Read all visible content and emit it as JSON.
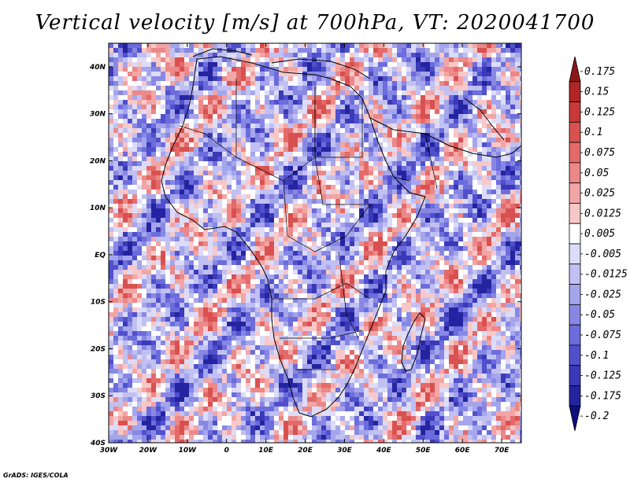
{
  "title": "Vertical velocity [m/s] at 700hPa, VT: 2020041700",
  "credit": "GrADS: IGES/COLA",
  "chart_data": {
    "type": "heatmap",
    "title": "Vertical velocity [m/s] at 700hPa, VT: 2020041700",
    "variable": "Vertical velocity",
    "units": "m/s",
    "level": "700hPa",
    "valid_time": "2020041700",
    "region": "Africa",
    "lon_range": [
      -30,
      75
    ],
    "lat_range": [
      -40,
      45
    ],
    "x_tick_labels": [
      "30W",
      "20W",
      "10W",
      "0",
      "10E",
      "20E",
      "30E",
      "40E",
      "50E",
      "60E",
      "70E"
    ],
    "x_tick_values": [
      -30,
      -20,
      -10,
      0,
      10,
      20,
      30,
      40,
      50,
      60,
      70
    ],
    "y_tick_labels": [
      "40N",
      "30N",
      "20N",
      "10N",
      "EQ",
      "10S",
      "20S",
      "30S",
      "40S"
    ],
    "y_tick_values": [
      40,
      30,
      20,
      10,
      0,
      -10,
      -20,
      -30,
      -40
    ],
    "colorbar": {
      "labels": [
        "0.175",
        "0.15",
        "0.125",
        "0.1",
        "0.075",
        "0.05",
        "0.025",
        "0.0125",
        "0.005",
        "-0.005",
        "-0.0125",
        "-0.025",
        "-0.05",
        "-0.075",
        "-0.1",
        "-0.125",
        "-0.175",
        "-0.2"
      ],
      "colors": [
        "#8c1818",
        "#b02525",
        "#c83838",
        "#d95050",
        "#e46a6a",
        "#ec8888",
        "#f2a5a5",
        "#f8c8c8",
        "#ffffff",
        "#dcdcf8",
        "#c0c0f2",
        "#a5a5ec",
        "#8888e4",
        "#6c6cdc",
        "#5050cc",
        "#3a3ab8",
        "#2424a0",
        "#0e0e7c"
      ]
    }
  }
}
